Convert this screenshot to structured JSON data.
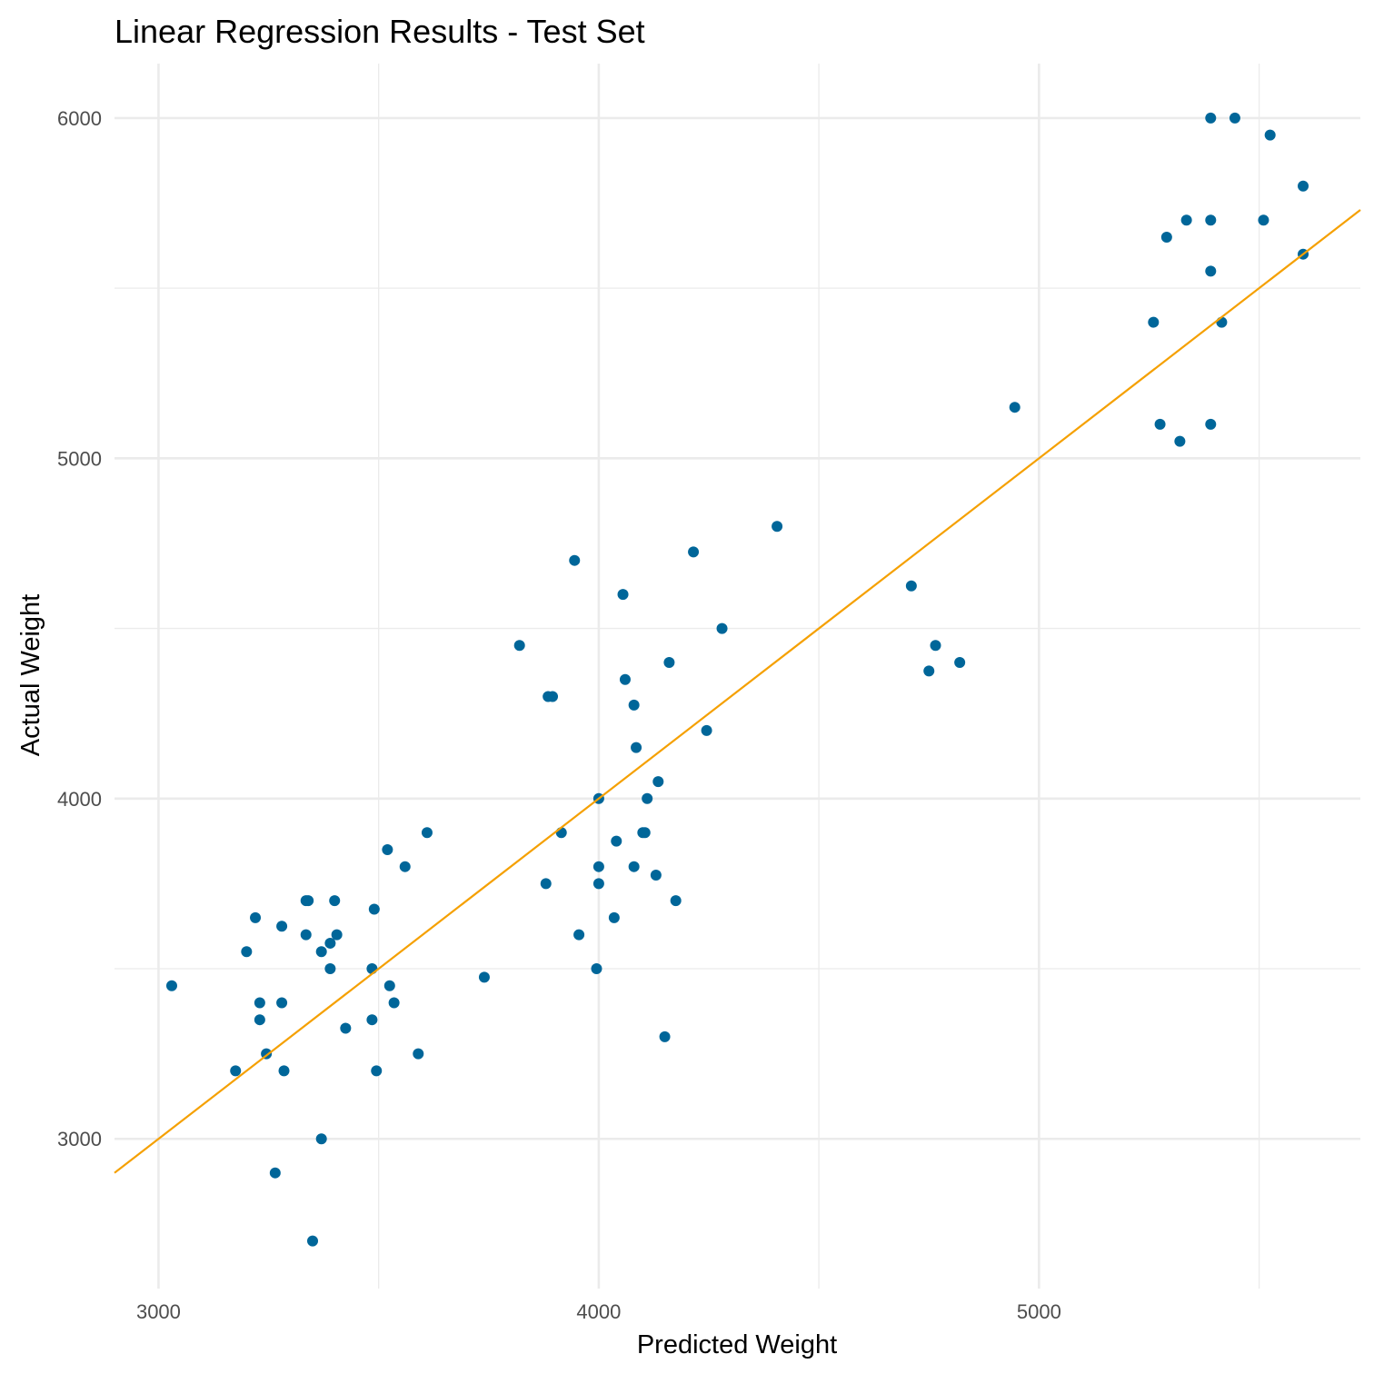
{
  "chart_data": {
    "type": "scatter",
    "title": "Linear Regression Results - Test Set",
    "xlabel": "Predicted Weight",
    "ylabel": "Actual Weight",
    "xlim": [
      2900,
      5730
    ],
    "ylim": [
      2560,
      6160
    ],
    "x_ticks": [
      3000,
      4000,
      5000
    ],
    "y_ticks": [
      3000,
      4000,
      5000,
      6000
    ],
    "x_minor": [
      3500,
      4500,
      5500
    ],
    "y_minor": [
      3500,
      4500,
      5500
    ],
    "grid": true,
    "point_color": "#006699",
    "line_color": "#F5A000",
    "reference_line": {
      "slope": 1,
      "intercept": 0
    },
    "series": [
      {
        "points": [
          [
            3030,
            3450
          ],
          [
            3175,
            3200
          ],
          [
            3200,
            3550
          ],
          [
            3220,
            3650
          ],
          [
            3230,
            3400
          ],
          [
            3230,
            3350
          ],
          [
            3245,
            3250
          ],
          [
            3265,
            2900
          ],
          [
            3280,
            3400
          ],
          [
            3280,
            3625
          ],
          [
            3285,
            3200
          ],
          [
            3335,
            3700
          ],
          [
            3335,
            3600
          ],
          [
            3340,
            3700
          ],
          [
            3350,
            2700
          ],
          [
            3370,
            3550
          ],
          [
            3370,
            3000
          ],
          [
            3390,
            3575
          ],
          [
            3390,
            3500
          ],
          [
            3400,
            3700
          ],
          [
            3405,
            3600
          ],
          [
            3425,
            3325
          ],
          [
            3485,
            3500
          ],
          [
            3485,
            3350
          ],
          [
            3490,
            3675
          ],
          [
            3495,
            3200
          ],
          [
            3520,
            3850
          ],
          [
            3525,
            3450
          ],
          [
            3535,
            3400
          ],
          [
            3560,
            3800
          ],
          [
            3590,
            3250
          ],
          [
            3610,
            3900
          ],
          [
            3740,
            3475
          ],
          [
            3820,
            4450
          ],
          [
            3880,
            3750
          ],
          [
            3885,
            4300
          ],
          [
            3895,
            4300
          ],
          [
            3915,
            3900
          ],
          [
            3945,
            4700
          ],
          [
            3955,
            3600
          ],
          [
            3995,
            3500
          ],
          [
            4000,
            4000
          ],
          [
            4000,
            3800
          ],
          [
            4000,
            3750
          ],
          [
            4035,
            3650
          ],
          [
            4040,
            3875
          ],
          [
            4055,
            4600
          ],
          [
            4060,
            4350
          ],
          [
            4080,
            3800
          ],
          [
            4080,
            4275
          ],
          [
            4085,
            4150
          ],
          [
            4100,
            3900
          ],
          [
            4105,
            3900
          ],
          [
            4110,
            4000
          ],
          [
            4130,
            3775
          ],
          [
            4135,
            4050
          ],
          [
            4150,
            3300
          ],
          [
            4160,
            4400
          ],
          [
            4175,
            3700
          ],
          [
            4215,
            4725
          ],
          [
            4245,
            4200
          ],
          [
            4280,
            4500
          ],
          [
            4405,
            4800
          ],
          [
            4710,
            4625
          ],
          [
            4750,
            4375
          ],
          [
            4765,
            4450
          ],
          [
            4820,
            4400
          ],
          [
            4945,
            5150
          ],
          [
            5260,
            5400
          ],
          [
            5275,
            5100
          ],
          [
            5290,
            5650
          ],
          [
            5320,
            5050
          ],
          [
            5335,
            5700
          ],
          [
            5390,
            5700
          ],
          [
            5390,
            5550
          ],
          [
            5390,
            5100
          ],
          [
            5390,
            6000
          ],
          [
            5415,
            5400
          ],
          [
            5445,
            6000
          ],
          [
            5510,
            5700
          ],
          [
            5525,
            5950
          ],
          [
            5600,
            5800
          ],
          [
            5600,
            5600
          ]
        ]
      }
    ]
  }
}
